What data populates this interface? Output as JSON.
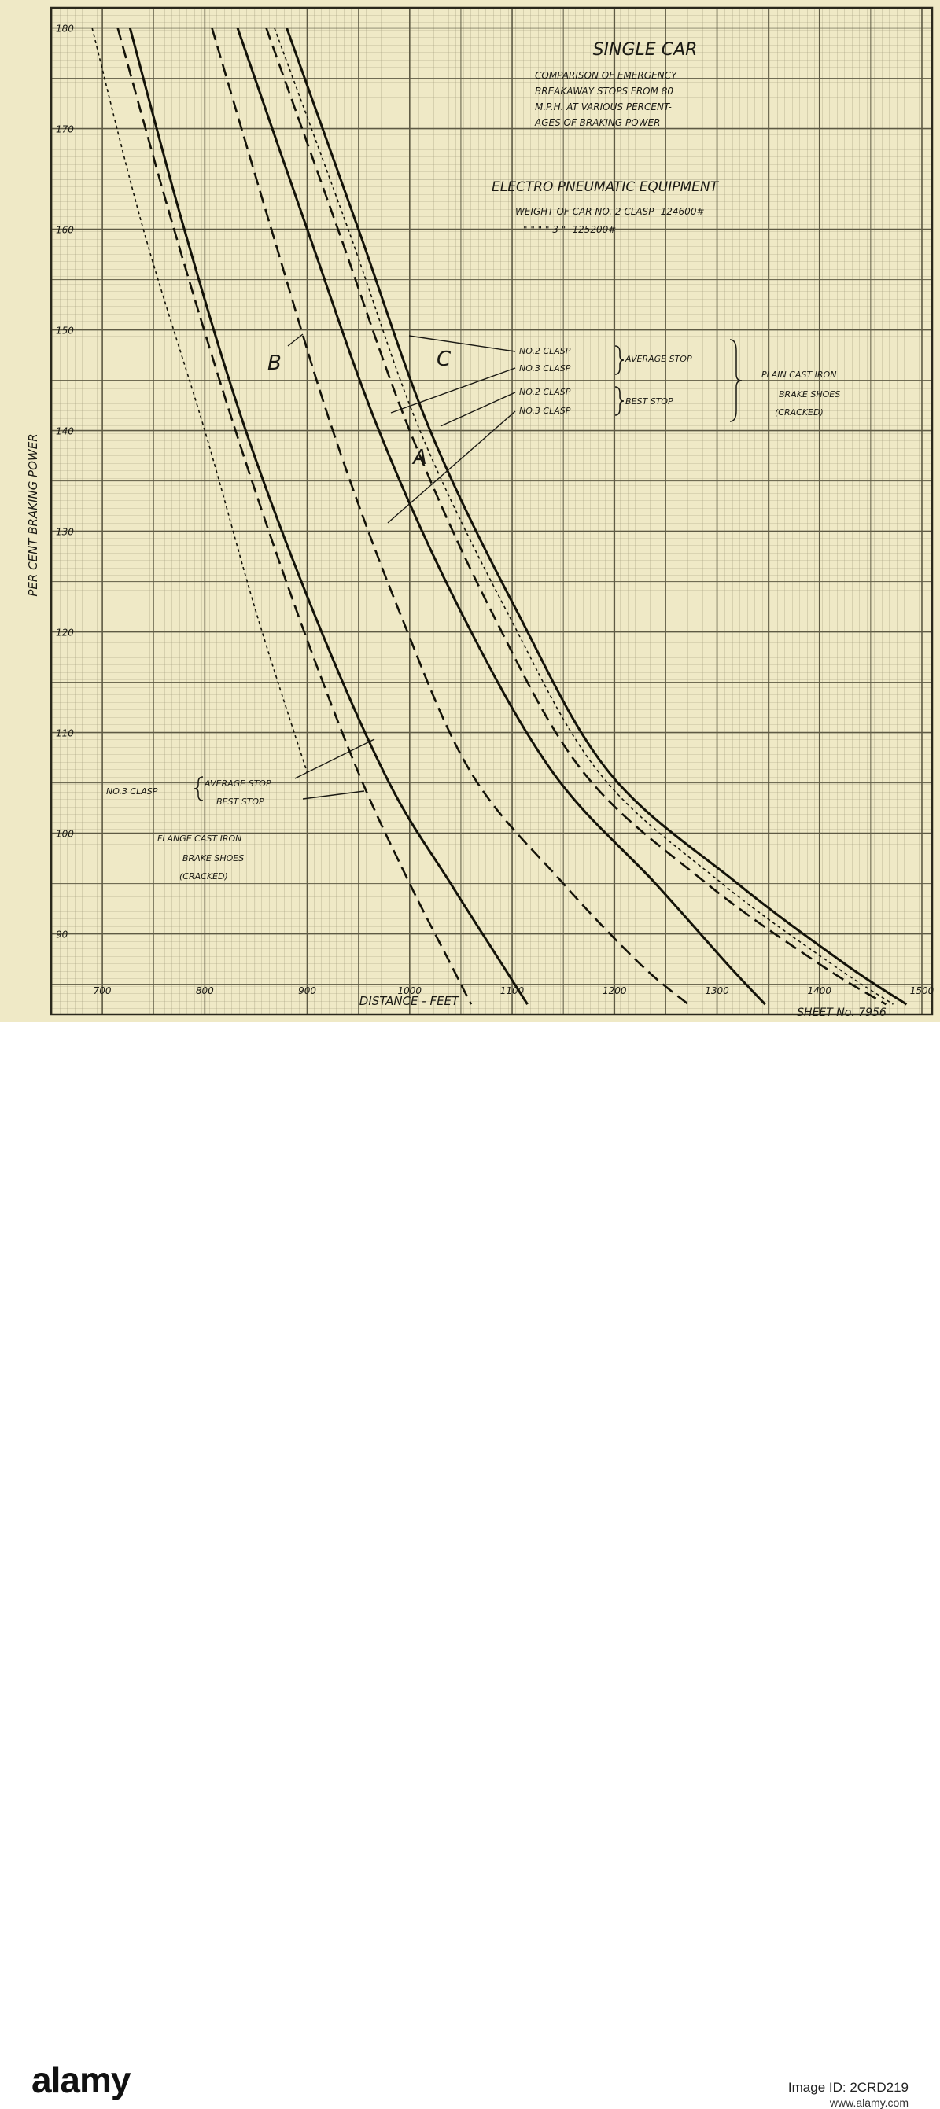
{
  "chart_data": {
    "type": "line",
    "title": "SINGLE CAR",
    "subtitle_lines": [
      "COMPARISON OF EMERGENCY",
      "BREAKAWAY STOPS FROM 80",
      "M.P.H. AT VARIOUS PERCENT-",
      "AGES OF BRAKING POWER"
    ],
    "equipment_title": "ELECTRO PNEUMATIC EQUIPMENT",
    "weight_lines": [
      "WEIGHT OF CAR NO. 2 CLASP -124600#",
      "\"   \"   \"   \" 3   \"   -125200#"
    ],
    "xlabel": "DISTANCE - FEET",
    "ylabel": "PER CENT BRAKING POWER",
    "xlim": [
      650,
      1510
    ],
    "ylim": [
      82,
      182
    ],
    "x_ticks": [
      "700",
      "800",
      "900",
      "1000",
      "1100",
      "1200",
      "1300",
      "1400",
      "1500"
    ],
    "y_ticks": [
      "180",
      "170",
      "160",
      "150",
      "140",
      "130",
      "120",
      "110",
      "100",
      "90"
    ],
    "grid": true,
    "series": [
      {
        "key": "flange_best",
        "style": "dash",
        "x": [
          715,
          770,
          830,
          890,
          950,
          1000,
          1040,
          1060
        ],
        "y": [
          180,
          160,
          140,
          122,
          106,
          95,
          87,
          83
        ]
      },
      {
        "key": "flange_average",
        "style": "solid",
        "x": [
          727,
          780,
          840,
          910,
          980,
          1040,
          1090,
          1115
        ],
        "y": [
          180,
          160,
          140,
          121,
          105,
          95,
          87,
          83
        ]
      },
      {
        "key": "plain_no3_best",
        "style": "dash",
        "x": [
          807,
          865,
          925,
          990,
          1060,
          1150,
          1225,
          1272
        ],
        "y": [
          180,
          160,
          140,
          122,
          106,
          95,
          87,
          83
        ]
      },
      {
        "key": "plain_no3_average",
        "style": "solid",
        "x": [
          832,
          900,
          970,
          1050,
          1140,
          1240,
          1310,
          1347
        ],
        "y": [
          180,
          160,
          140,
          122,
          106,
          95,
          87,
          83
        ]
      },
      {
        "key": "plain_no2_best",
        "style": "dash",
        "x": [
          860,
          930,
          1000,
          1080,
          1170,
          1290,
          1400,
          1465
        ],
        "y": [
          180,
          160,
          140,
          122,
          106,
          95,
          87,
          83
        ]
      },
      {
        "key": "plain_no2_avg_dotted",
        "style": "dot",
        "x": [
          868,
          940,
          1010,
          1095,
          1185,
          1305,
          1412,
          1472
        ],
        "y": [
          180,
          160,
          140,
          122,
          106,
          95,
          87,
          83
        ]
      },
      {
        "key": "plain_no2_average",
        "style": "solid",
        "x": [
          880,
          950,
          1020,
          1105,
          1195,
          1320,
          1425,
          1485
        ],
        "y": [
          180,
          160,
          140,
          122,
          106,
          95,
          87,
          83
        ]
      },
      {
        "key": "left_dotted",
        "style": "dot",
        "x": [
          690,
          740,
          800,
          850,
          900
        ],
        "y": [
          180,
          160,
          140,
          122,
          106
        ]
      }
    ],
    "annotations": {
      "letter_a": "A",
      "letter_b": "B",
      "letter_c": "C",
      "no2_clasp": "NO.2 CLASP",
      "no3_clasp": "NO.3 CLASP",
      "average_stop": "AVERAGE STOP",
      "best_stop": "BEST STOP",
      "plain_group_lines": [
        "PLAIN CAST IRON",
        "BRAKE SHOES",
        "(CRACKED)"
      ],
      "flange_group_lines": [
        "FLANGE CAST IRON",
        "BRAKE SHOES",
        "(CRACKED)"
      ],
      "sheet": "SHEET No. 7956"
    }
  },
  "banner": {
    "logo": "alamy",
    "image_id": "Image ID: 2CRD219",
    "url": "www.alamy.com"
  }
}
